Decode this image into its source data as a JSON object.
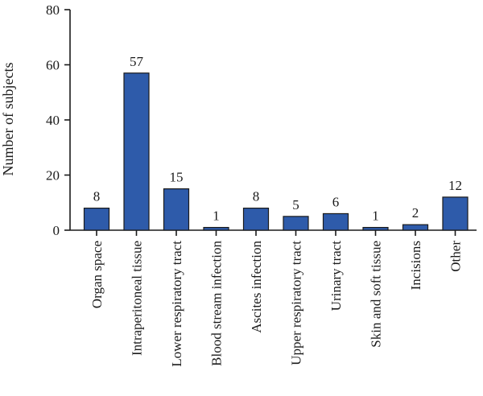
{
  "chart_data": {
    "type": "bar",
    "title": "",
    "xlabel": "",
    "ylabel": "Number of subjects",
    "ylim": [
      0,
      80
    ],
    "yticks": [
      0,
      20,
      40,
      60,
      80
    ],
    "categories": [
      "Organ space",
      "Intraperitoneal tissue",
      "Lower respiratory tract",
      "Blood stream infection",
      "Ascites infection",
      "Upper respiratory tract",
      "Urinary tract",
      "Skin and soft tissue",
      "Incisions",
      "Other"
    ],
    "values": [
      8,
      57,
      15,
      1,
      8,
      5,
      6,
      1,
      2,
      12
    ],
    "bar_color": "#2e5baa",
    "bar_edge_color": "#1a1a1a",
    "grid": false,
    "legend": "none"
  }
}
